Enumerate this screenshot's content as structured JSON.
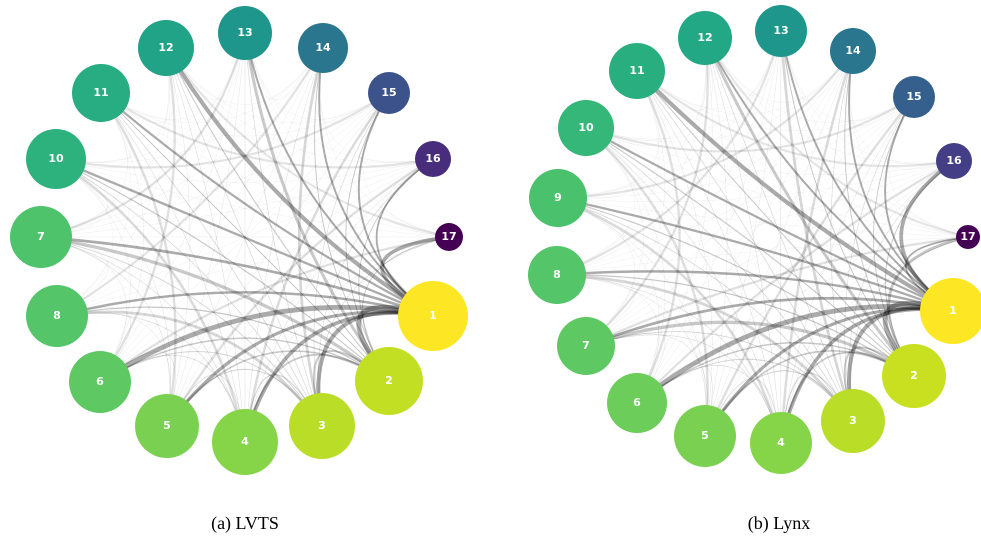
{
  "panels": [
    {
      "caption": "(a) LVTS",
      "nodes": [
        "1",
        "2",
        "3",
        "4",
        "5",
        "6",
        "7",
        "8",
        "10",
        "11",
        "12",
        "13",
        "14",
        "15",
        "16",
        "17"
      ]
    },
    {
      "caption": "(b) Lynx",
      "nodes": [
        "1",
        "2",
        "3",
        "4",
        "5",
        "6",
        "7",
        "8",
        "9",
        "10",
        "11",
        "12",
        "13",
        "14",
        "15",
        "16",
        "17"
      ]
    }
  ]
}
